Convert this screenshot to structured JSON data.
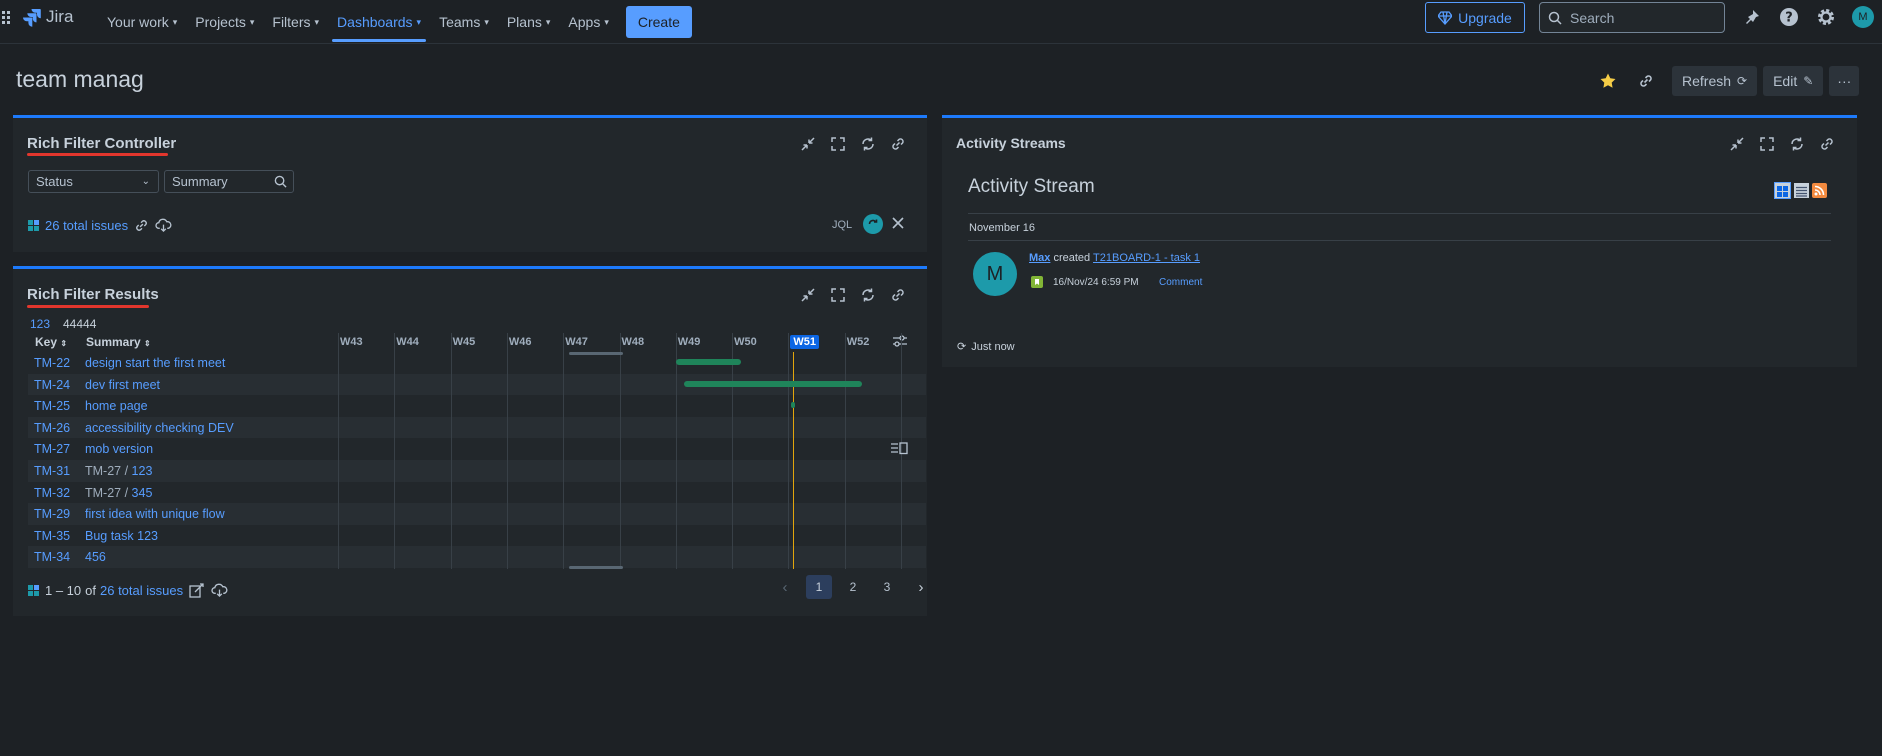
{
  "topnav": {
    "product": "Jira",
    "items": [
      {
        "label": "Your work",
        "active": false
      },
      {
        "label": "Projects",
        "active": false
      },
      {
        "label": "Filters",
        "active": false
      },
      {
        "label": "Dashboards",
        "active": true
      },
      {
        "label": "Teams",
        "active": false
      },
      {
        "label": "Plans",
        "active": false
      },
      {
        "label": "Apps",
        "active": false
      }
    ],
    "create_label": "Create",
    "upgrade_label": "Upgrade",
    "search_placeholder": "Search",
    "avatar_initial": "M"
  },
  "page": {
    "title": "team manag",
    "refresh_label": "Refresh",
    "edit_label": "Edit",
    "more_label": "···"
  },
  "controller": {
    "title": "Rich Filter Controller",
    "status_label": "Status",
    "summary_label": "Summary",
    "total_issues": "26 total issues",
    "jql_label": "JQL"
  },
  "results": {
    "title": "Rich Filter Results",
    "tab_123": "123",
    "tab_44444": "44444",
    "col_key": "Key",
    "col_summary": "Summary",
    "weeks": [
      "W43",
      "W44",
      "W45",
      "W46",
      "W47",
      "W48",
      "W49",
      "W50",
      "W51",
      "W52"
    ],
    "current_week": "W51",
    "rows": [
      {
        "key": "TM-22",
        "summary": "design start the first meet",
        "parent": ""
      },
      {
        "key": "TM-24",
        "summary": "dev first meet",
        "parent": ""
      },
      {
        "key": "TM-25",
        "summary": "home page",
        "parent": ""
      },
      {
        "key": "TM-26",
        "summary": "accessibility checking DEV",
        "parent": ""
      },
      {
        "key": "TM-27",
        "summary": "mob version",
        "parent": ""
      },
      {
        "key": "TM-31",
        "summary": "123",
        "parent": "TM-27 / "
      },
      {
        "key": "TM-32",
        "summary": "345",
        "parent": "TM-27 / "
      },
      {
        "key": "TM-29",
        "summary": "first idea with unique flow",
        "parent": ""
      },
      {
        "key": "TM-35",
        "summary": "Bug task 123",
        "parent": ""
      },
      {
        "key": "TM-34",
        "summary": "456",
        "parent": ""
      }
    ],
    "range_text": "1 – 10",
    "of_text": "of",
    "total_issues": "26 total issues",
    "pages": [
      "1",
      "2",
      "3"
    ],
    "current_page": "1"
  },
  "activity": {
    "title": "Activity Streams",
    "heading": "Activity Stream",
    "date": "November 16",
    "user": "Max",
    "action": "created",
    "issue_link": "T21BOARD-1 - task 1",
    "timestamp": "16/Nov/24 6:59 PM",
    "comment_label": "Comment",
    "avatar_initial": "M",
    "refreshed": "Just now"
  },
  "colors": {
    "accent": "#579dff",
    "gadget_border": "#1d7afc",
    "gantt_bar": "#1f845a",
    "today_line": "#e2a50c",
    "annotation_red": "#e2362d"
  }
}
